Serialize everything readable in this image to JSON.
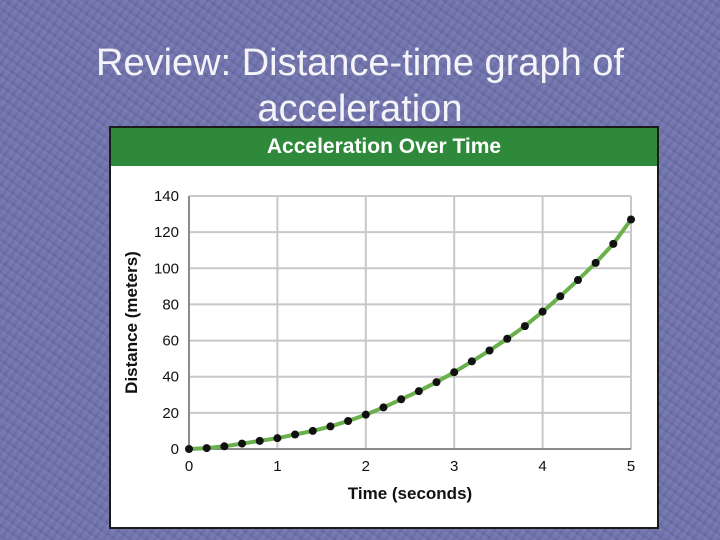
{
  "slide": {
    "title_line1": "Review: Distance-time graph of",
    "title_line2": "acceleration"
  },
  "colors": {
    "background": "#6f72ad",
    "header": "#2e8a3a",
    "curve": "#6ab04c",
    "points": "#111111",
    "grid": "#c8c8c8"
  },
  "chart_data": {
    "type": "scatter",
    "title": "Acceleration Over Time",
    "xlabel": "Time (seconds)",
    "ylabel": "Distance (meters)",
    "xlim": [
      0,
      5
    ],
    "ylim": [
      0,
      140
    ],
    "xticks": [
      0,
      1,
      2,
      3,
      4,
      5
    ],
    "yticks": [
      0,
      20,
      40,
      60,
      80,
      100,
      120,
      140
    ],
    "grid": true,
    "trend_line": true,
    "x": [
      0,
      0.2,
      0.4,
      0.6,
      0.8,
      1.0,
      1.2,
      1.4,
      1.6,
      1.8,
      2.0,
      2.2,
      2.4,
      2.6,
      2.8,
      3.0,
      3.2,
      3.4,
      3.6,
      3.8,
      4.0,
      4.2,
      4.4,
      4.6,
      4.8,
      5.0
    ],
    "y": [
      0,
      0.5,
      1.5,
      3,
      4.5,
      6,
      8,
      10,
      12.5,
      15.5,
      19,
      23,
      27.5,
      32,
      37,
      42.5,
      48.5,
      54.5,
      61,
      68,
      76,
      84.5,
      93.5,
      103,
      113.5,
      127
    ]
  }
}
